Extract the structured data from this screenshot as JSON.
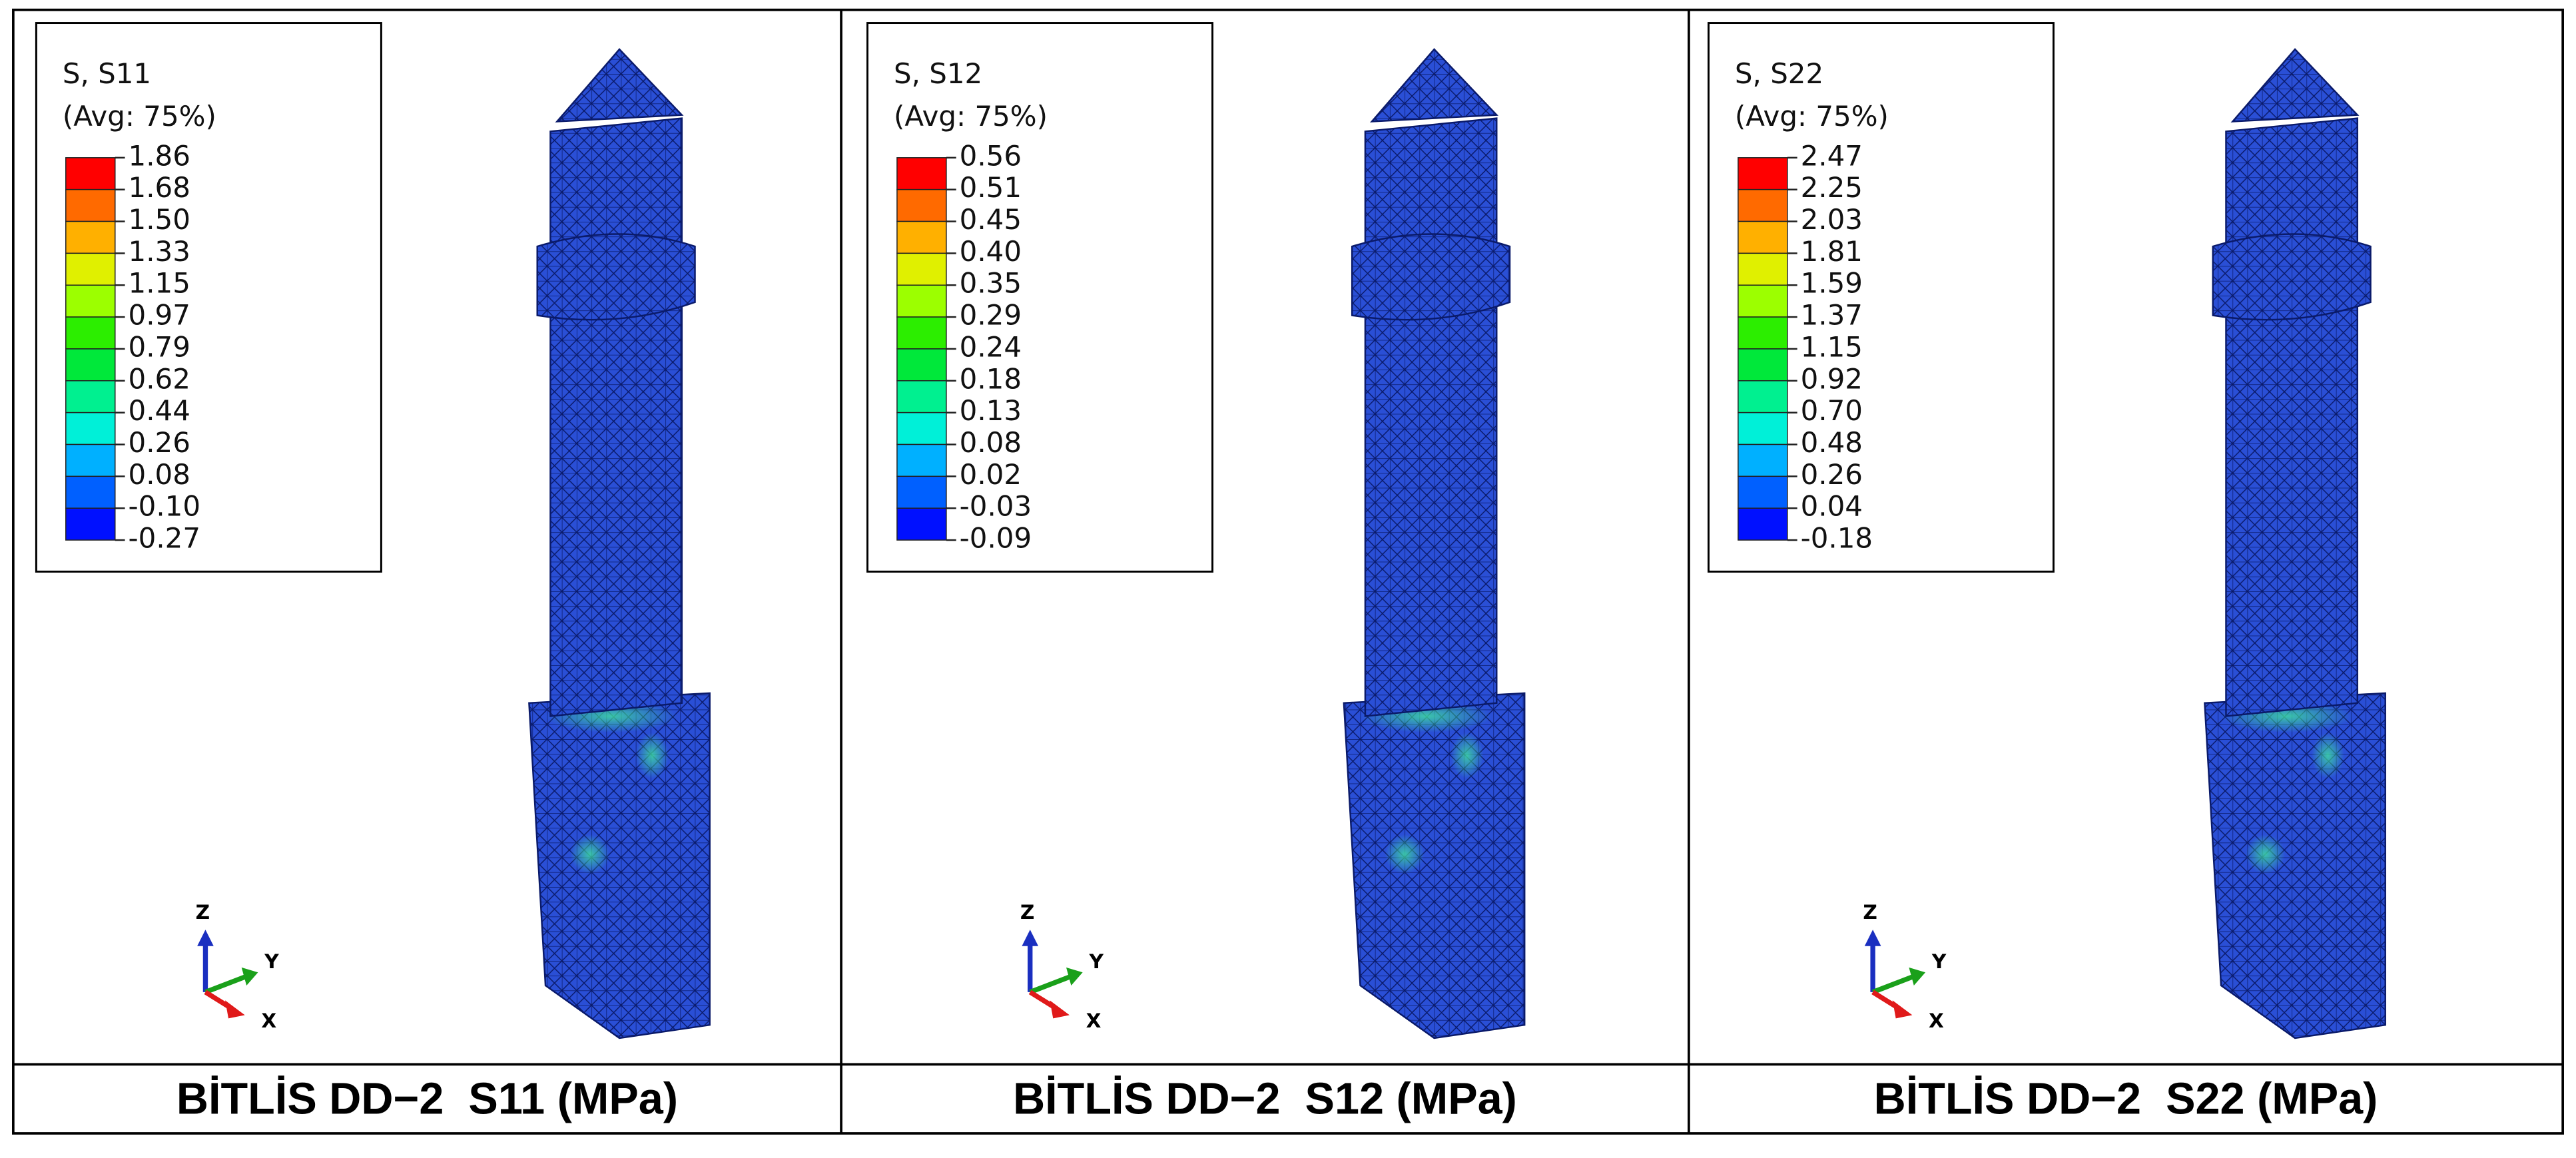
{
  "panels": [
    {
      "legend": {
        "title": "S, S11",
        "averaging": "(Avg: 75%)",
        "labels": [
          "1.86",
          "1.68",
          "1.50",
          "1.33",
          "1.15",
          "0.97",
          "0.79",
          "0.62",
          "0.44",
          "0.26",
          "0.08",
          "-0.10",
          "-0.27"
        ]
      },
      "axes": {
        "z": "Z",
        "y": "Y",
        "x": "X"
      },
      "caption": "BİTLİS DD−2  S11 (MPa)"
    },
    {
      "legend": {
        "title": "S, S12",
        "averaging": "(Avg: 75%)",
        "labels": [
          "0.56",
          "0.51",
          "0.45",
          "0.40",
          "0.35",
          "0.29",
          "0.24",
          "0.18",
          "0.13",
          "0.08",
          "0.02",
          "-0.03",
          "-0.09"
        ]
      },
      "axes": {
        "z": "Z",
        "y": "Y",
        "x": "X"
      },
      "caption": "BİTLİS DD−2  S12 (MPa)"
    },
    {
      "legend": {
        "title": "S, S22",
        "averaging": "(Avg: 75%)",
        "labels": [
          "2.47",
          "2.25",
          "2.03",
          "1.81",
          "1.59",
          "1.37",
          "1.15",
          "0.92",
          "0.70",
          "0.48",
          "0.26",
          "0.04",
          "-0.18"
        ]
      },
      "axes": {
        "z": "Z",
        "y": "Y",
        "x": "X"
      },
      "caption": "BİTLİS DD−2  S22 (MPa)"
    }
  ]
}
